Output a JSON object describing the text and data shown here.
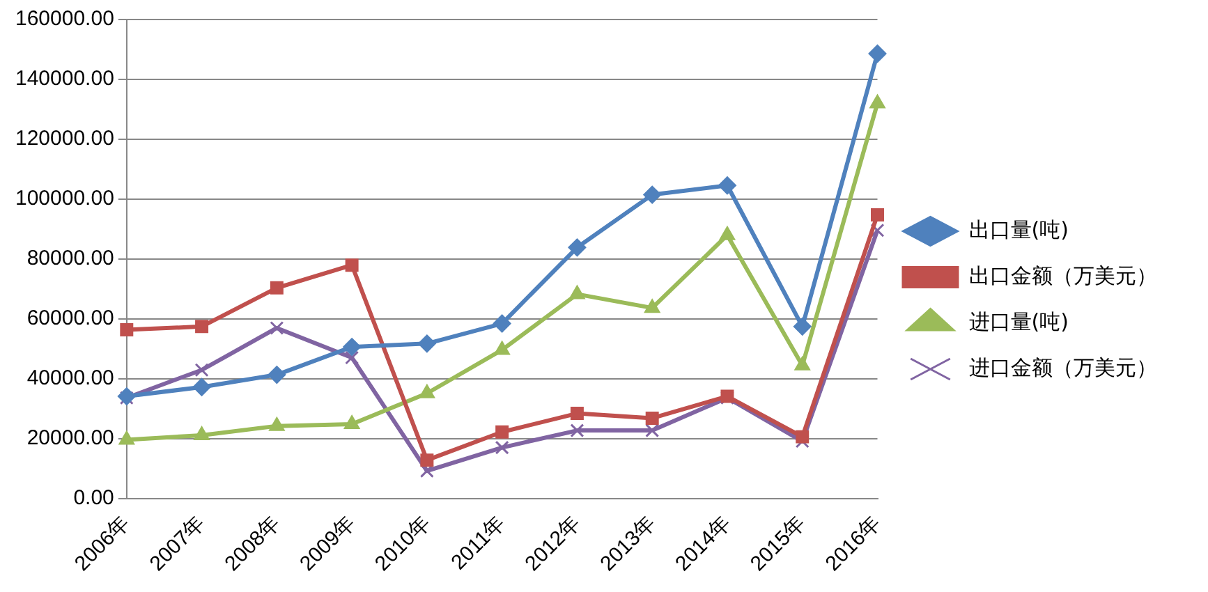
{
  "chart_data": {
    "type": "line",
    "categories": [
      "2006年",
      "2007年",
      "2008年",
      "2009年",
      "2010年",
      "2011年",
      "2012年",
      "2013年",
      "2014年",
      "2015年",
      "2016年"
    ],
    "series": [
      {
        "name": "出口量(吨)",
        "color": "#4f81bd",
        "marker": "diamond",
        "values": [
          34200,
          37300,
          41400,
          50700,
          51800,
          58500,
          83900,
          101500,
          104600,
          57500,
          148600
        ]
      },
      {
        "name": "出口金额（万美元）",
        "color": "#c0504d",
        "marker": "square",
        "values": [
          56400,
          57500,
          70400,
          78000,
          12900,
          22300,
          28500,
          26900,
          34200,
          20700,
          94800
        ]
      },
      {
        "name": "进口量(吨)",
        "color": "#9bbb59",
        "marker": "triangle",
        "values": [
          19700,
          21200,
          24300,
          24900,
          35200,
          49700,
          68300,
          63700,
          88000,
          44500,
          132000
        ]
      },
      {
        "name": "进口金额（万美元）",
        "color": "#8064a2",
        "marker": "cross",
        "values": [
          33700,
          43000,
          57000,
          47100,
          9300,
          17100,
          22800,
          22800,
          33700,
          19200,
          89600
        ]
      }
    ],
    "ylim": [
      0,
      160000
    ],
    "yticks": [
      {
        "value": 0,
        "label": "0.00"
      },
      {
        "value": 20000,
        "label": "20000.00"
      },
      {
        "value": 40000,
        "label": "40000.00"
      },
      {
        "value": 60000,
        "label": "60000.00"
      },
      {
        "value": 80000,
        "label": "80000.00"
      },
      {
        "value": 100000,
        "label": "100000.00"
      },
      {
        "value": 120000,
        "label": "120000.00"
      },
      {
        "value": 140000,
        "label": "140000.00"
      },
      {
        "value": 160000,
        "label": "160000.00"
      }
    ],
    "grid": "y",
    "legend": "right",
    "line_style": "solid"
  }
}
